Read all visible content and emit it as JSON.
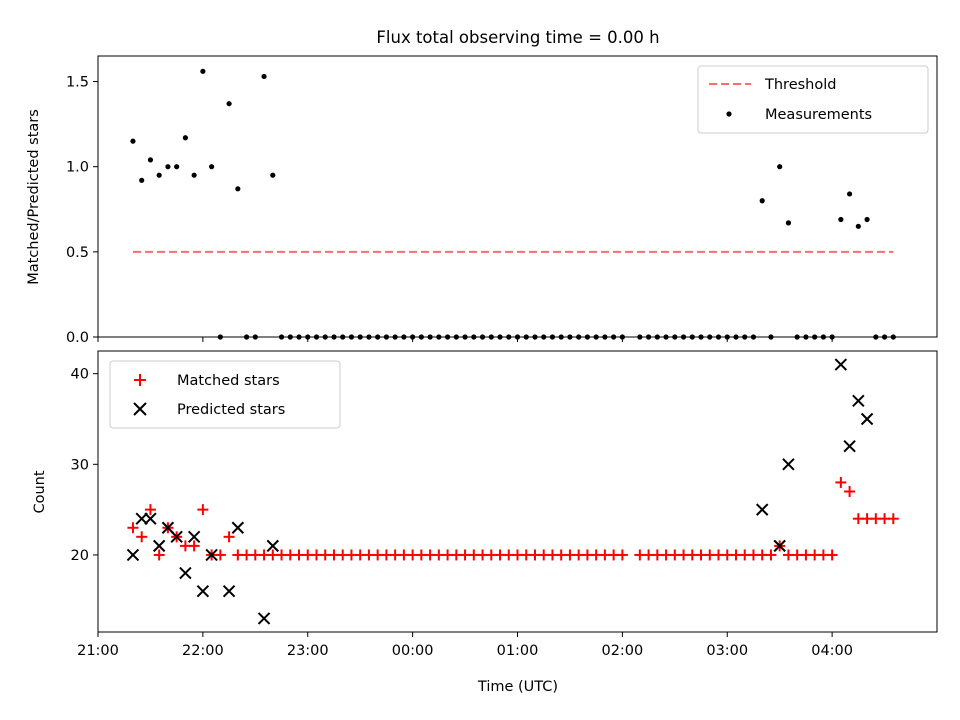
{
  "chart_data": [
    {
      "panel": "top",
      "type": "scatter",
      "title": "Flux total observing time = 0.00 h",
      "xlabel": "",
      "ylabel": "Matched/Predicted stars",
      "xlim": [
        "21:00",
        "05:00"
      ],
      "ylim": [
        0,
        1.65
      ],
      "yticks": [
        "0.0",
        "0.5",
        "1.0",
        "1.5"
      ],
      "grid": false,
      "legend_position": "top-right",
      "series": [
        {
          "name": "Threshold",
          "kind": "line",
          "style": "dashed",
          "color": "#ff6b6b",
          "points": [
            [
              "21:20",
              0.5
            ],
            [
              "04:35",
              0.5
            ]
          ]
        },
        {
          "name": "Measurements",
          "kind": "points",
          "color": "#000000",
          "points": [
            [
              "21:20",
              1.15
            ],
            [
              "21:25",
              0.92
            ],
            [
              "21:30",
              1.04
            ],
            [
              "21:35",
              0.95
            ],
            [
              "21:40",
              1.0
            ],
            [
              "21:45",
              1.0
            ],
            [
              "21:50",
              1.17
            ],
            [
              "21:55",
              0.95
            ],
            [
              "22:00",
              1.56
            ],
            [
              "22:05",
              1.0
            ],
            [
              "22:10",
              0.0
            ],
            [
              "22:15",
              1.37
            ],
            [
              "22:20",
              0.87
            ],
            [
              "22:25",
              0.0
            ],
            [
              "22:30",
              0.0
            ],
            [
              "22:35",
              1.53
            ],
            [
              "22:40",
              0.95
            ],
            [
              "22:45",
              0.0
            ],
            [
              "22:50",
              0.0
            ],
            [
              "22:55",
              0.0
            ],
            [
              "23:00",
              0.0
            ],
            [
              "23:05",
              0.0
            ],
            [
              "23:10",
              0.0
            ],
            [
              "23:15",
              0.0
            ],
            [
              "23:20",
              0.0
            ],
            [
              "23:25",
              0.0
            ],
            [
              "23:30",
              0.0
            ],
            [
              "23:35",
              0.0
            ],
            [
              "23:40",
              0.0
            ],
            [
              "23:45",
              0.0
            ],
            [
              "23:50",
              0.0
            ],
            [
              "23:55",
              0.0
            ],
            [
              "00:00",
              0.0
            ],
            [
              "00:05",
              0.0
            ],
            [
              "00:10",
              0.0
            ],
            [
              "00:15",
              0.0
            ],
            [
              "00:20",
              0.0
            ],
            [
              "00:25",
              0.0
            ],
            [
              "00:30",
              0.0
            ],
            [
              "00:35",
              0.0
            ],
            [
              "00:40",
              0.0
            ],
            [
              "00:45",
              0.0
            ],
            [
              "00:50",
              0.0
            ],
            [
              "00:55",
              0.0
            ],
            [
              "01:00",
              0.0
            ],
            [
              "01:05",
              0.0
            ],
            [
              "01:10",
              0.0
            ],
            [
              "01:15",
              0.0
            ],
            [
              "01:20",
              0.0
            ],
            [
              "01:25",
              0.0
            ],
            [
              "01:30",
              0.0
            ],
            [
              "01:35",
              0.0
            ],
            [
              "01:40",
              0.0
            ],
            [
              "01:45",
              0.0
            ],
            [
              "01:50",
              0.0
            ],
            [
              "01:55",
              0.0
            ],
            [
              "02:00",
              0.0
            ],
            [
              "02:10",
              0.0
            ],
            [
              "02:15",
              0.0
            ],
            [
              "02:20",
              0.0
            ],
            [
              "02:25",
              0.0
            ],
            [
              "02:30",
              0.0
            ],
            [
              "02:35",
              0.0
            ],
            [
              "02:40",
              0.0
            ],
            [
              "02:45",
              0.0
            ],
            [
              "02:50",
              0.0
            ],
            [
              "02:55",
              0.0
            ],
            [
              "03:00",
              0.0
            ],
            [
              "03:05",
              0.0
            ],
            [
              "03:10",
              0.0
            ],
            [
              "03:15",
              0.0
            ],
            [
              "03:20",
              0.8
            ],
            [
              "03:25",
              0.0
            ],
            [
              "03:30",
              1.0
            ],
            [
              "03:35",
              0.67
            ],
            [
              "03:40",
              0.0
            ],
            [
              "03:45",
              0.0
            ],
            [
              "03:50",
              0.0
            ],
            [
              "03:55",
              0.0
            ],
            [
              "04:00",
              0.0
            ],
            [
              "04:05",
              0.69
            ],
            [
              "04:10",
              0.84
            ],
            [
              "04:15",
              0.65
            ],
            [
              "04:20",
              0.69
            ],
            [
              "04:25",
              0.0
            ],
            [
              "04:30",
              0.0
            ],
            [
              "04:35",
              0.0
            ]
          ]
        }
      ]
    },
    {
      "panel": "bottom",
      "type": "scatter",
      "title": "",
      "xlabel": "Time (UTC)",
      "ylabel": "Count",
      "xlim": [
        "21:00",
        "05:00"
      ],
      "ylim": [
        11.5,
        42.5
      ],
      "yticks": [
        "20",
        "30",
        "40"
      ],
      "xticks": [
        "21:00",
        "22:00",
        "23:00",
        "00:00",
        "01:00",
        "02:00",
        "03:00",
        "04:00"
      ],
      "grid": false,
      "legend_position": "top-left",
      "series": [
        {
          "name": "Matched stars",
          "marker": "plus",
          "color": "#ff0000",
          "points": [
            [
              "21:20",
              23
            ],
            [
              "21:25",
              22
            ],
            [
              "21:30",
              25
            ],
            [
              "21:35",
              20
            ],
            [
              "21:40",
              23
            ],
            [
              "21:45",
              22
            ],
            [
              "21:50",
              21
            ],
            [
              "21:55",
              21
            ],
            [
              "22:00",
              25
            ],
            [
              "22:05",
              20
            ],
            [
              "22:10",
              20
            ],
            [
              "22:15",
              22
            ],
            [
              "22:20",
              20
            ],
            [
              "22:25",
              20
            ],
            [
              "22:30",
              20
            ],
            [
              "22:35",
              20
            ],
            [
              "22:40",
              20
            ],
            [
              "22:45",
              20
            ],
            [
              "22:50",
              20
            ],
            [
              "22:55",
              20
            ],
            [
              "23:00",
              20
            ],
            [
              "23:05",
              20
            ],
            [
              "23:10",
              20
            ],
            [
              "23:15",
              20
            ],
            [
              "23:20",
              20
            ],
            [
              "23:25",
              20
            ],
            [
              "23:30",
              20
            ],
            [
              "23:35",
              20
            ],
            [
              "23:40",
              20
            ],
            [
              "23:45",
              20
            ],
            [
              "23:50",
              20
            ],
            [
              "23:55",
              20
            ],
            [
              "00:00",
              20
            ],
            [
              "00:05",
              20
            ],
            [
              "00:10",
              20
            ],
            [
              "00:15",
              20
            ],
            [
              "00:20",
              20
            ],
            [
              "00:25",
              20
            ],
            [
              "00:30",
              20
            ],
            [
              "00:35",
              20
            ],
            [
              "00:40",
              20
            ],
            [
              "00:45",
              20
            ],
            [
              "00:50",
              20
            ],
            [
              "00:55",
              20
            ],
            [
              "01:00",
              20
            ],
            [
              "01:05",
              20
            ],
            [
              "01:10",
              20
            ],
            [
              "01:15",
              20
            ],
            [
              "01:20",
              20
            ],
            [
              "01:25",
              20
            ],
            [
              "01:30",
              20
            ],
            [
              "01:35",
              20
            ],
            [
              "01:40",
              20
            ],
            [
              "01:45",
              20
            ],
            [
              "01:50",
              20
            ],
            [
              "01:55",
              20
            ],
            [
              "02:00",
              20
            ],
            [
              "02:10",
              20
            ],
            [
              "02:15",
              20
            ],
            [
              "02:20",
              20
            ],
            [
              "02:25",
              20
            ],
            [
              "02:30",
              20
            ],
            [
              "02:35",
              20
            ],
            [
              "02:40",
              20
            ],
            [
              "02:45",
              20
            ],
            [
              "02:50",
              20
            ],
            [
              "02:55",
              20
            ],
            [
              "03:00",
              20
            ],
            [
              "03:05",
              20
            ],
            [
              "03:10",
              20
            ],
            [
              "03:15",
              20
            ],
            [
              "03:20",
              20
            ],
            [
              "03:25",
              20
            ],
            [
              "03:30",
              21
            ],
            [
              "03:35",
              20
            ],
            [
              "03:40",
              20
            ],
            [
              "03:45",
              20
            ],
            [
              "03:50",
              20
            ],
            [
              "03:55",
              20
            ],
            [
              "04:00",
              20
            ],
            [
              "04:05",
              28
            ],
            [
              "04:10",
              27
            ],
            [
              "04:15",
              24
            ],
            [
              "04:20",
              24
            ],
            [
              "04:25",
              24
            ],
            [
              "04:30",
              24
            ],
            [
              "04:35",
              24
            ]
          ]
        },
        {
          "name": "Predicted stars",
          "marker": "x",
          "color": "#000000",
          "points": [
            [
              "21:20",
              20
            ],
            [
              "21:25",
              24
            ],
            [
              "21:30",
              24
            ],
            [
              "21:35",
              21
            ],
            [
              "21:40",
              23
            ],
            [
              "21:45",
              22
            ],
            [
              "21:50",
              18
            ],
            [
              "21:55",
              22
            ],
            [
              "22:00",
              16
            ],
            [
              "22:05",
              20
            ],
            [
              "22:15",
              16
            ],
            [
              "22:20",
              23
            ],
            [
              "22:35",
              13
            ],
            [
              "22:40",
              21
            ],
            [
              "03:20",
              25
            ],
            [
              "03:30",
              21
            ],
            [
              "03:35",
              30
            ],
            [
              "04:05",
              41
            ],
            [
              "04:10",
              32
            ],
            [
              "04:15",
              37
            ],
            [
              "04:20",
              35
            ]
          ]
        }
      ]
    }
  ]
}
